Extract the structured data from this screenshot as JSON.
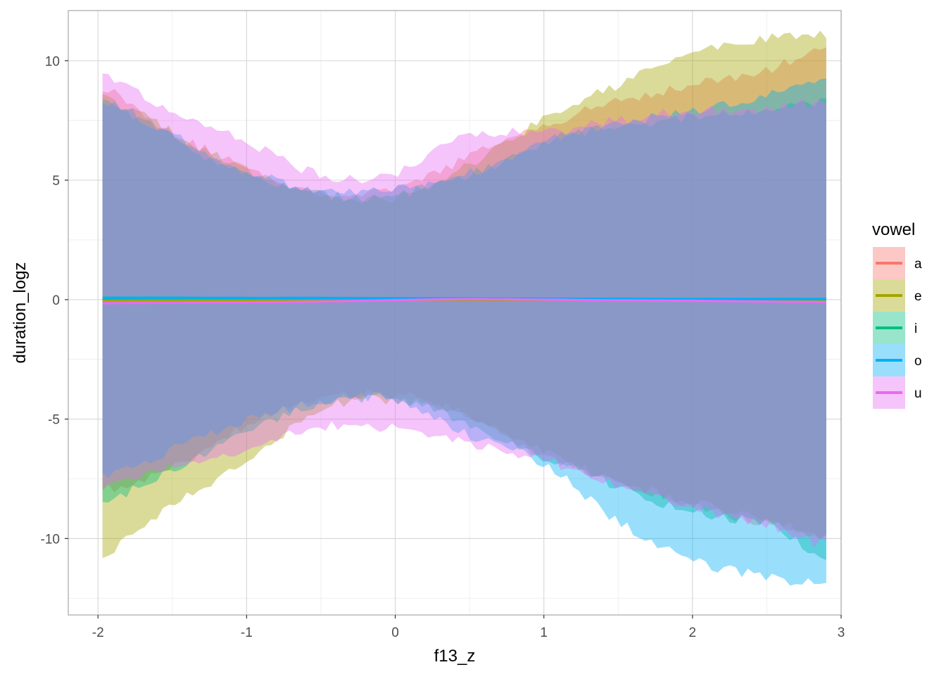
{
  "chart_data": {
    "type": "area",
    "xlabel": "f13_z",
    "ylabel": "duration_logz",
    "xlim": [
      -2.2,
      3.0
    ],
    "ylim": [
      -13.2,
      12.1
    ],
    "x_ticks": [
      -2,
      -1,
      0,
      1,
      2,
      3
    ],
    "x_tick_labels": [
      "-2",
      "-1",
      "0",
      "1",
      "2",
      "3"
    ],
    "y_ticks": [
      -10,
      -5,
      0,
      5,
      10
    ],
    "y_tick_labels": [
      "-10",
      "-5",
      "0",
      "5",
      "10"
    ],
    "grid": true,
    "legend": {
      "title": "vowel",
      "position": "right"
    },
    "x": [
      -2.0,
      -1.5,
      -1.0,
      -0.5,
      0.0,
      0.5,
      1.0,
      1.5,
      2.0,
      2.5,
      2.9
    ],
    "series": [
      {
        "name": "a",
        "color": "#F8766D",
        "mean": [
          -0.05,
          -0.05,
          -0.04,
          -0.03,
          -0.02,
          -0.01,
          -0.01,
          -0.02,
          -0.03,
          -0.04,
          -0.05
        ],
        "upper": [
          9.0,
          7.0,
          5.5,
          4.5,
          4.6,
          6.0,
          7.3,
          8.3,
          9.0,
          9.6,
          10.5
        ],
        "lower": [
          -8.0,
          -7.0,
          -5.3,
          -4.2,
          -4.0,
          -4.9,
          -6.5,
          -7.7,
          -8.6,
          -9.4,
          -9.8
        ]
      },
      {
        "name": "e",
        "color": "#A3A500",
        "mean": [
          -0.03,
          -0.03,
          -0.02,
          -0.02,
          -0.01,
          -0.01,
          -0.01,
          -0.02,
          -0.02,
          -0.03,
          -0.04
        ],
        "upper": [
          8.5,
          7.0,
          5.4,
          4.4,
          4.3,
          5.6,
          7.6,
          9.0,
          10.3,
          10.9,
          11.1
        ],
        "lower": [
          -10.7,
          -8.6,
          -6.8,
          -4.6,
          -4.2,
          -5.0,
          -6.4,
          -7.6,
          -8.5,
          -9.2,
          -9.9
        ]
      },
      {
        "name": "i",
        "color": "#00BF7D",
        "mean": [
          0.05,
          0.06,
          0.06,
          0.06,
          0.05,
          0.04,
          0.03,
          0.03,
          0.02,
          0.02,
          0.02
        ],
        "upper": [
          8.4,
          6.8,
          5.2,
          4.4,
          4.4,
          5.2,
          6.6,
          7.3,
          7.6,
          7.9,
          8.3
        ],
        "lower": [
          -8.5,
          -7.2,
          -5.6,
          -4.4,
          -4.2,
          -5.2,
          -6.6,
          -7.8,
          -8.9,
          -9.4,
          -10.8
        ]
      },
      {
        "name": "o",
        "color": "#00B0F6",
        "mean": [
          0.08,
          0.08,
          0.07,
          0.07,
          0.06,
          0.05,
          0.04,
          0.04,
          0.03,
          0.03,
          0.03
        ],
        "upper": [
          8.4,
          6.9,
          5.4,
          4.5,
          4.6,
          5.3,
          6.6,
          7.4,
          7.9,
          8.5,
          9.1
        ],
        "lower": [
          -7.5,
          -6.3,
          -5.1,
          -4.3,
          -4.2,
          -5.7,
          -6.9,
          -9.3,
          -10.9,
          -11.6,
          -11.9
        ]
      },
      {
        "name": "u",
        "color": "#E76BF3",
        "mean": [
          -0.15,
          -0.13,
          -0.11,
          -0.08,
          -0.02,
          0.02,
          0.0,
          -0.03,
          -0.05,
          -0.08,
          -0.1
        ],
        "upper": [
          9.4,
          7.8,
          6.6,
          5.2,
          5.3,
          6.9,
          7.0,
          7.5,
          7.9,
          8.0,
          8.3
        ],
        "lower": [
          -7.8,
          -7.0,
          -6.3,
          -5.3,
          -5.4,
          -6.0,
          -6.7,
          -7.8,
          -8.7,
          -9.4,
          -10.3
        ]
      }
    ]
  }
}
